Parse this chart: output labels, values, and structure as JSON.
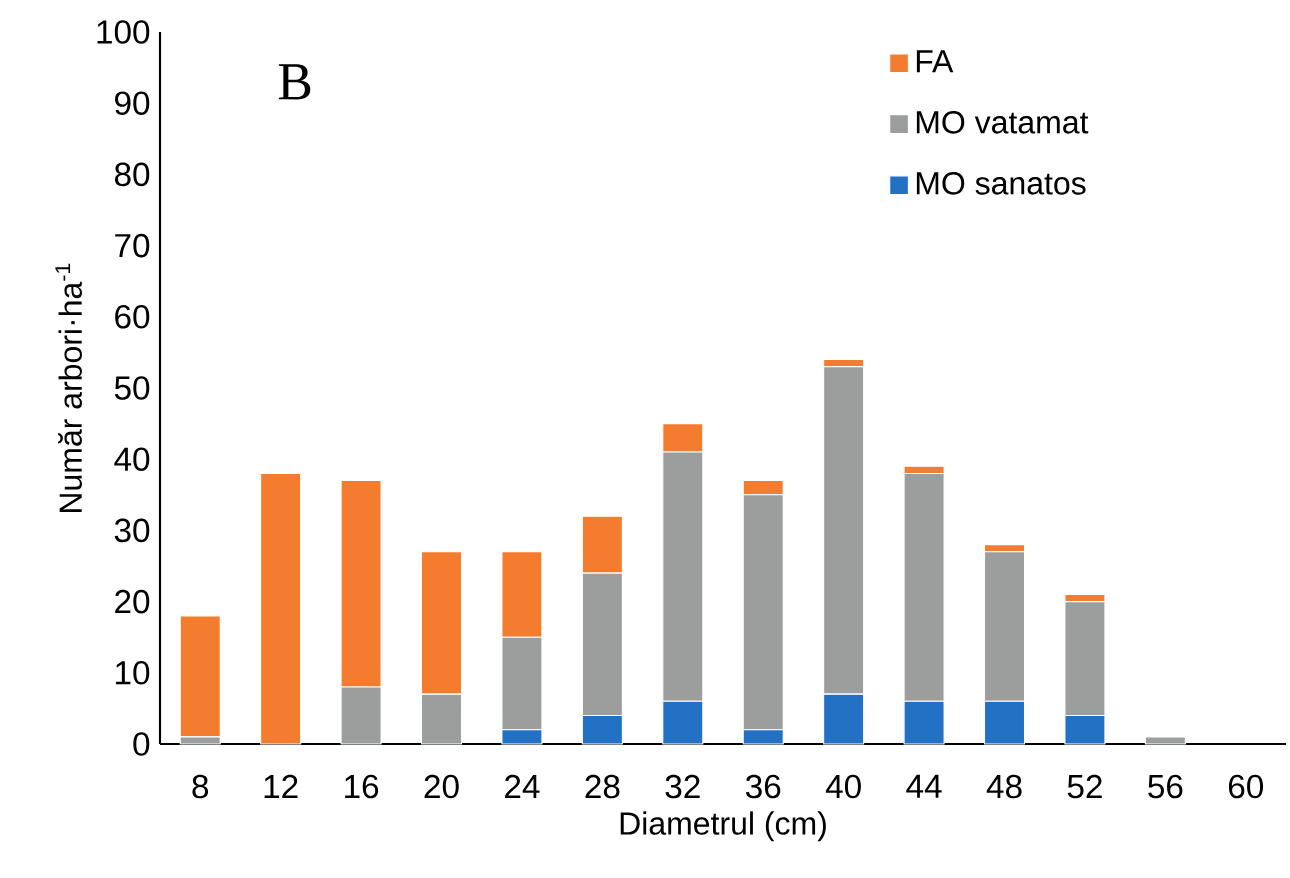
{
  "chart_data": {
    "type": "bar",
    "stacked": true,
    "xlabel": "Diametrul (cm)",
    "ylabel": "Număr arbori·ha$^{-1}$",
    "annotations": [
      "B"
    ],
    "categories": [
      "8",
      "12",
      "16",
      "20",
      "24",
      "28",
      "32",
      "36",
      "40",
      "44",
      "48",
      "52",
      "56",
      "60"
    ],
    "series": [
      {
        "name": "MO sanatos",
        "color": "#2271c4",
        "values": [
          0,
          0,
          0,
          0,
          2,
          4,
          6,
          2,
          7,
          6,
          6,
          4,
          0,
          0
        ]
      },
      {
        "name": "MO vatamat",
        "color": "#9c9e9e",
        "values": [
          1,
          0,
          8,
          7,
          13,
          20,
          35,
          33,
          46,
          32,
          21,
          16,
          1,
          0
        ]
      },
      {
        "name": "FA",
        "color": "#f47c2e",
        "values": [
          17,
          38,
          29,
          20,
          12,
          8,
          4,
          2,
          1,
          1,
          1,
          1,
          0,
          0
        ]
      }
    ],
    "ylim": [
      0,
      100
    ],
    "yticks": [
      0,
      10,
      20,
      30,
      40,
      50,
      60,
      70,
      80,
      90,
      100
    ],
    "grid": false,
    "legend": "top right"
  }
}
